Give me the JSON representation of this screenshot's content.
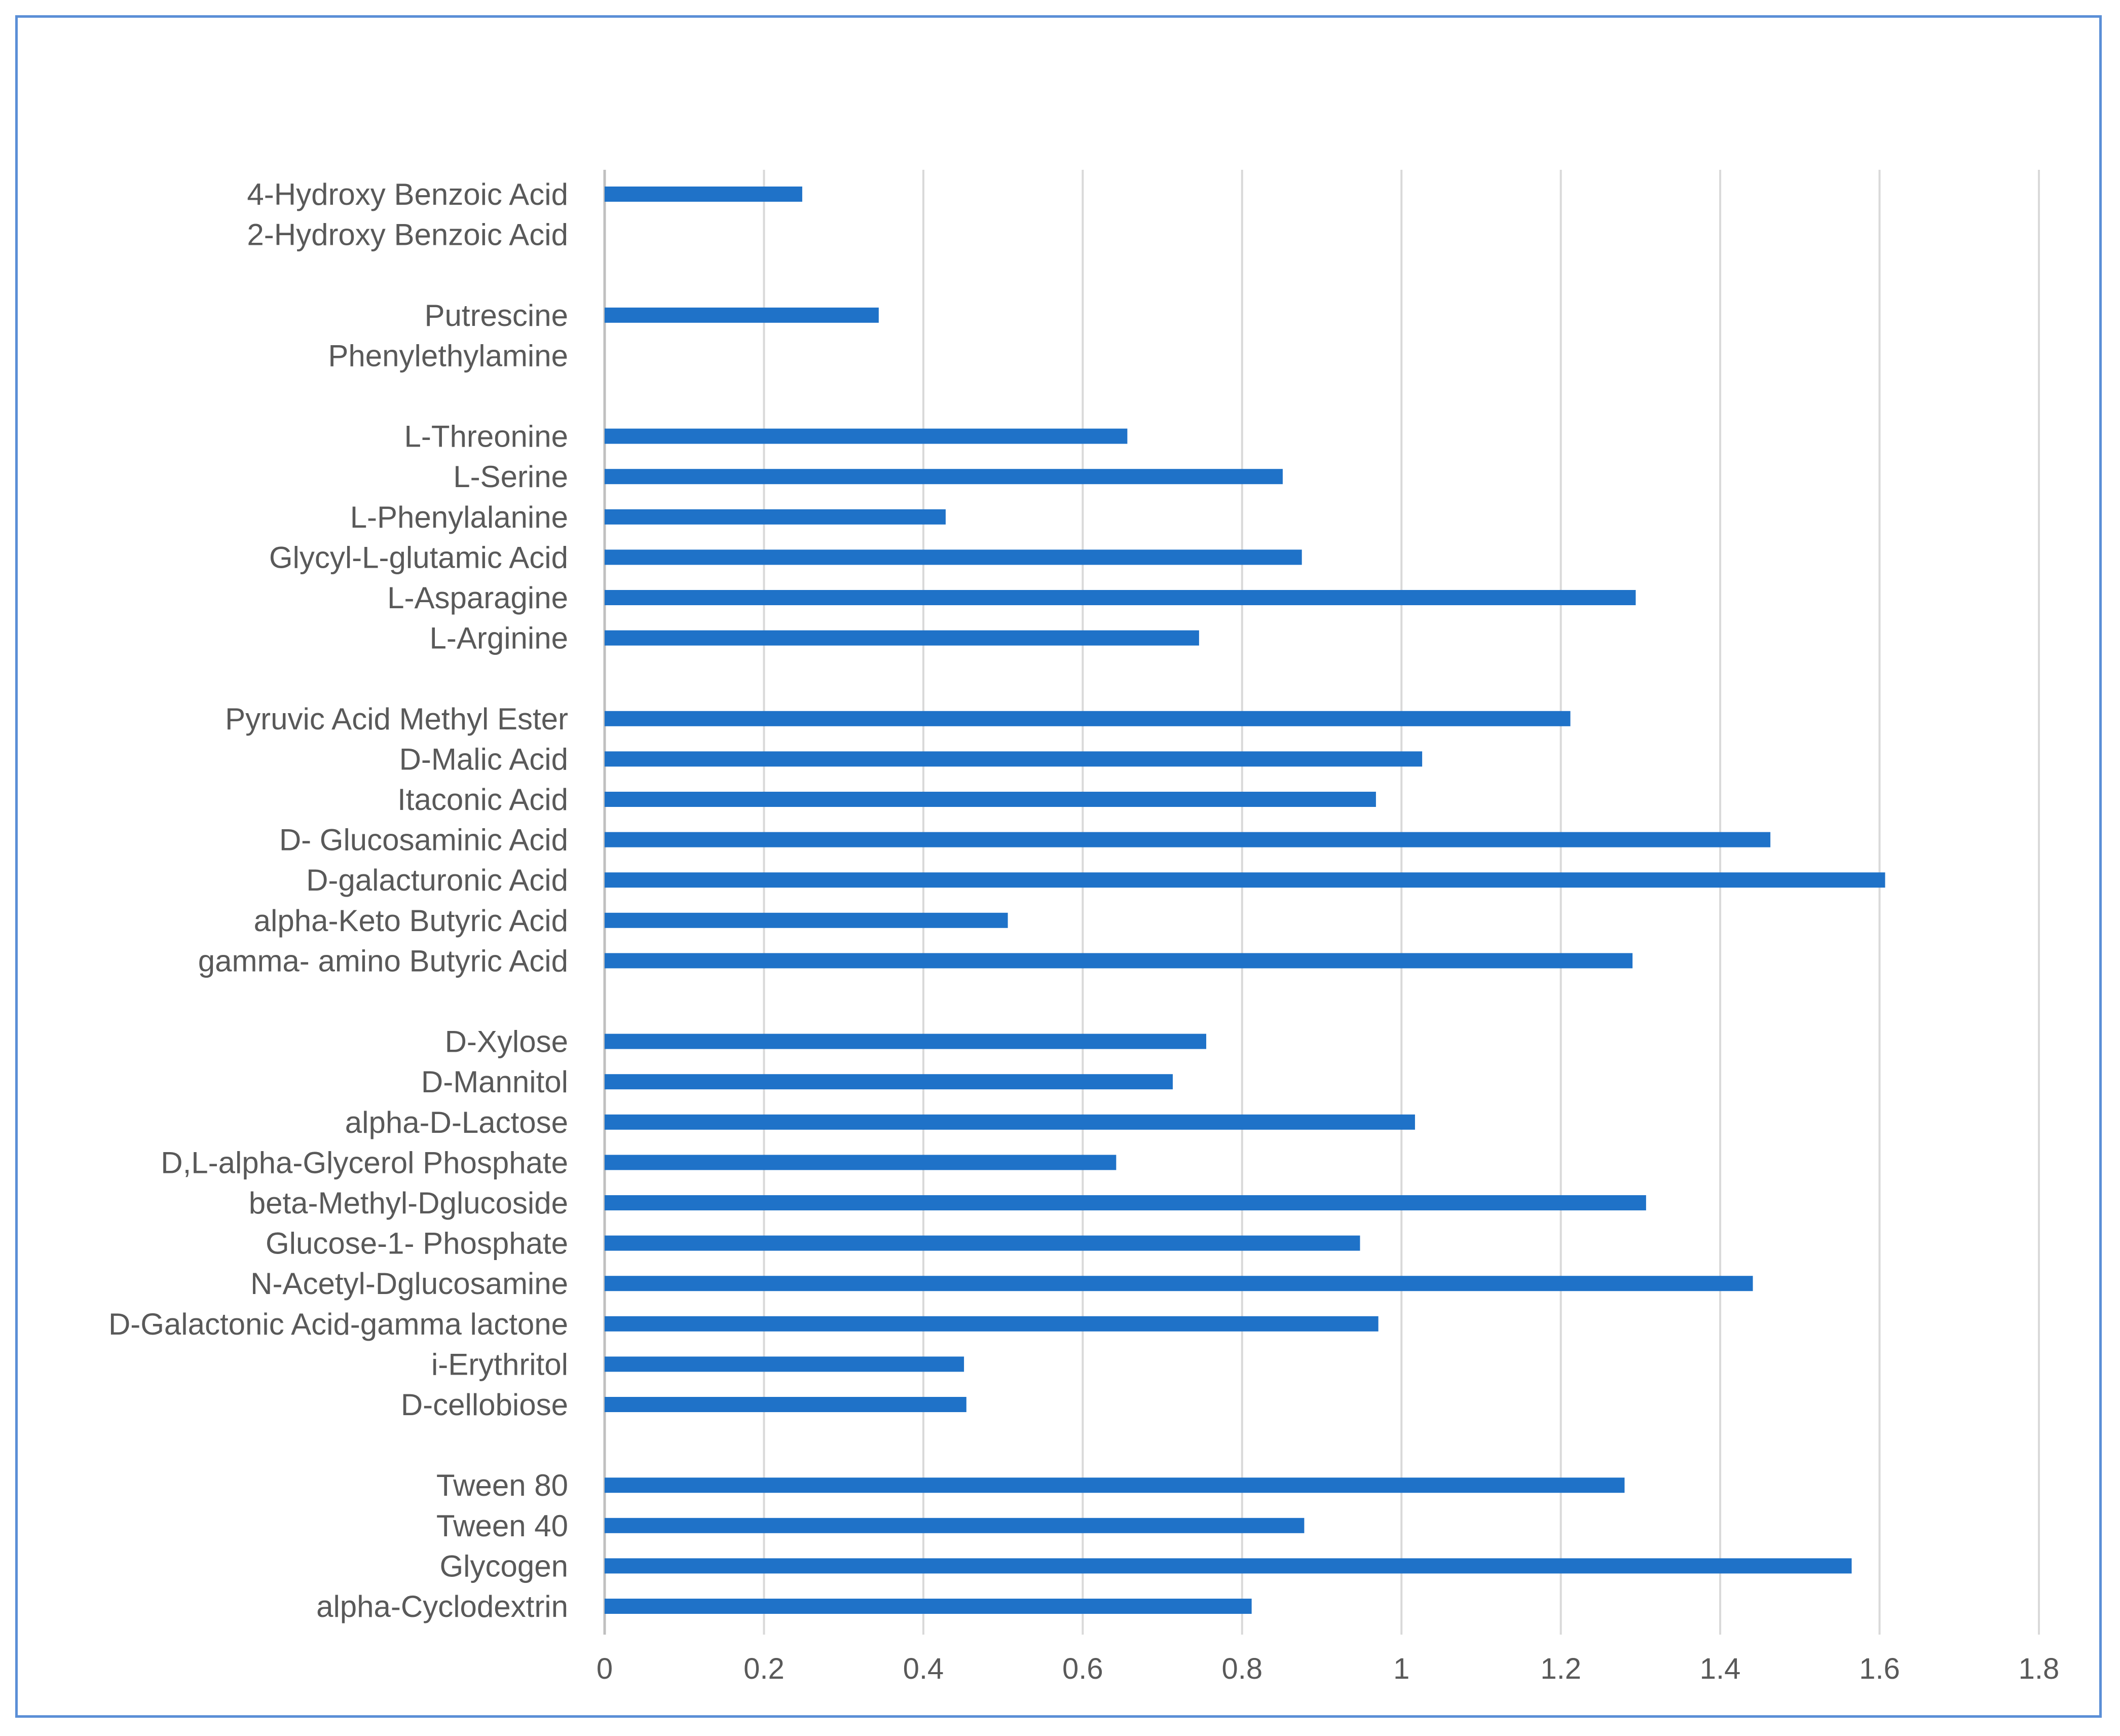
{
  "chart_data": {
    "type": "bar",
    "orientation": "horizontal",
    "title": "",
    "xlabel": "",
    "ylabel": "",
    "xlim": [
      0,
      1.8
    ],
    "x_ticks": [
      "0",
      "0.2",
      "0.4",
      "0.6",
      "0.8",
      "1",
      "1.2",
      "1.4",
      "1.6",
      "1.8"
    ],
    "x_tick_values": [
      0,
      0.2,
      0.4,
      0.6,
      0.8,
      1.0,
      1.2,
      1.4,
      1.6,
      1.8
    ],
    "grid": "vertical",
    "legend": "none",
    "bar_color": "#1f72c8",
    "grid_color": "#d9d9d9",
    "axis_color": "#bfbfbf",
    "label_color": "#595959",
    "frame_color": "#5b8fd6",
    "categories": [
      "4-Hydroxy Benzoic Acid",
      "2-Hydroxy Benzoic Acid",
      "",
      "Putrescine",
      "Phenylethylamine",
      "",
      "L-Threonine",
      "L-Serine",
      "L-Phenylalanine",
      "Glycyl-L-glutamic Acid",
      "L-Asparagine",
      "L-Arginine",
      "",
      "Pyruvic Acid Methyl Ester",
      "D-Malic Acid",
      "Itaconic Acid",
      "D- Glucosaminic Acid",
      "D-galacturonic Acid",
      "alpha-Keto Butyric Acid",
      "gamma- amino Butyric Acid",
      "",
      "D-Xylose",
      "D-Mannitol",
      "alpha-D-Lactose",
      "D,L-alpha-Glycerol Phosphate",
      "beta-Methyl-Dglucoside",
      "Glucose-1- Phosphate",
      "N-Acetyl-Dglucosamine",
      "D-Galactonic Acid-gamma lactone",
      "i-Erythritol",
      "D-cellobiose",
      "",
      "Tween 80",
      "Tween 40",
      "Glycogen",
      "alpha-Cyclodextrin"
    ],
    "values": [
      0.248,
      0,
      null,
      0.344,
      0,
      null,
      0.656,
      0.851,
      0.428,
      0.875,
      1.294,
      0.746,
      null,
      1.212,
      1.026,
      0.968,
      1.463,
      1.607,
      0.506,
      1.29,
      null,
      0.755,
      0.713,
      1.017,
      0.642,
      1.307,
      0.948,
      1.441,
      0.971,
      0.451,
      0.454,
      null,
      1.28,
      0.878,
      1.565,
      0.812
    ]
  }
}
